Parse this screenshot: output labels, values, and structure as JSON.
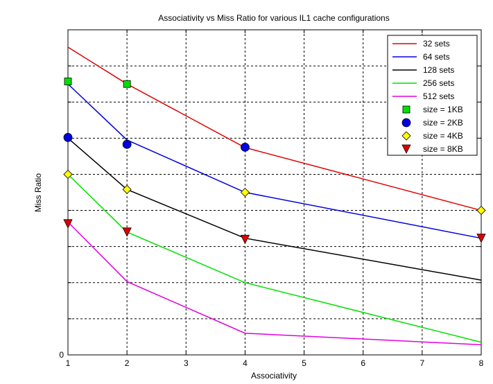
{
  "chart_data": {
    "type": "line",
    "title": "Associativity vs Miss Ratio for various IL1 cache configurations",
    "xlabel": "Associativity",
    "ylabel": "Miss Ratio",
    "x": [
      1,
      2,
      4,
      8
    ],
    "xlim": [
      1,
      8
    ],
    "xticks": [
      "1",
      "2",
      "3",
      "4",
      "5",
      "6",
      "7",
      "8"
    ],
    "ylim": [
      0,
      9
    ],
    "yticks": [
      "0"
    ],
    "grid": true,
    "legend_position": "top-right",
    "series": [
      {
        "name": "32 sets",
        "color": "#e00000",
        "values": [
          8.52,
          7.5,
          5.74,
          4.0
        ]
      },
      {
        "name": "64 sets",
        "color": "#0000e0",
        "values": [
          7.5,
          5.95,
          4.5,
          3.23
        ]
      },
      {
        "name": "128 sets",
        "color": "#000000",
        "values": [
          6.0,
          4.58,
          3.23,
          2.07
        ]
      },
      {
        "name": "256 sets",
        "color": "#00e000",
        "values": [
          5.0,
          3.4,
          2.0,
          0.35
        ]
      },
      {
        "name": "512 sets",
        "color": "#e000e0",
        "values": [
          3.68,
          2.03,
          0.6,
          0.28
        ]
      }
    ],
    "markers": [
      {
        "name": "size = 1KB",
        "shape": "square",
        "color": "#00e000",
        "points": [
          [
            1,
            7.57
          ],
          [
            2,
            7.5
          ]
        ]
      },
      {
        "name": "size = 2KB",
        "shape": "circle",
        "color": "#0000e0",
        "points": [
          [
            1,
            6.02
          ],
          [
            2,
            5.83
          ],
          [
            4,
            5.75
          ]
        ]
      },
      {
        "name": "size = 4KB",
        "shape": "diamond",
        "color": "#ffff00",
        "points": [
          [
            1,
            5.0
          ],
          [
            2,
            4.58
          ],
          [
            4,
            4.5
          ],
          [
            8,
            4.0
          ]
        ]
      },
      {
        "name": "size = 8KB",
        "shape": "triangle-down",
        "color": "#e00000",
        "points": [
          [
            1,
            3.63
          ],
          [
            2,
            3.4
          ],
          [
            4,
            3.2
          ],
          [
            8,
            3.23
          ]
        ]
      }
    ]
  }
}
